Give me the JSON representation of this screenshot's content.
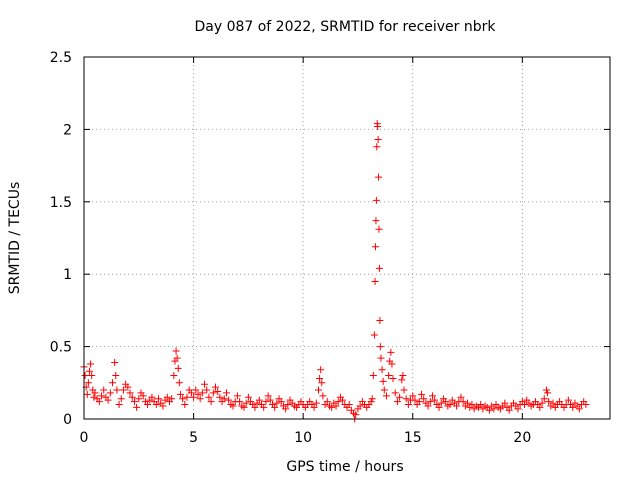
{
  "chart_data": {
    "type": "scatter",
    "title": "Day 087 of 2022, SRMTID for receiver nbrk",
    "xlabel": "GPS time / hours",
    "ylabel": "SRMTID / TECUs",
    "xlim": [
      0,
      24
    ],
    "ylim": [
      0,
      2.5
    ],
    "xticks": [
      0,
      5,
      10,
      15,
      20
    ],
    "xtick_labels": [
      "0",
      "5",
      "10",
      "15",
      "20"
    ],
    "yticks": [
      0,
      0.5,
      1,
      1.5,
      2,
      2.5
    ],
    "ytick_labels": [
      "0",
      "0.5",
      "1",
      "1.5",
      "2",
      "2.5"
    ],
    "grid": true,
    "marker": "+",
    "color": "#ff0000",
    "series": [
      {
        "name": "SRMTID",
        "points": [
          [
            0.0,
            0.36
          ],
          [
            0.05,
            0.3
          ],
          [
            0.1,
            0.22
          ],
          [
            0.15,
            0.17
          ],
          [
            0.2,
            0.25
          ],
          [
            0.25,
            0.33
          ],
          [
            0.3,
            0.38
          ],
          [
            0.35,
            0.3
          ],
          [
            0.4,
            0.2
          ],
          [
            0.45,
            0.15
          ],
          [
            0.5,
            0.18
          ],
          [
            0.6,
            0.14
          ],
          [
            0.7,
            0.12
          ],
          [
            0.8,
            0.16
          ],
          [
            0.9,
            0.2
          ],
          [
            1.0,
            0.15
          ],
          [
            1.1,
            0.13
          ],
          [
            1.2,
            0.18
          ],
          [
            1.3,
            0.25
          ],
          [
            1.4,
            0.39
          ],
          [
            1.45,
            0.3
          ],
          [
            1.5,
            0.2
          ],
          [
            1.6,
            0.1
          ],
          [
            1.7,
            0.14
          ],
          [
            1.8,
            0.2
          ],
          [
            1.9,
            0.24
          ],
          [
            2.0,
            0.22
          ],
          [
            2.1,
            0.18
          ],
          [
            2.2,
            0.15
          ],
          [
            2.3,
            0.12
          ],
          [
            2.4,
            0.08
          ],
          [
            2.5,
            0.14
          ],
          [
            2.6,
            0.18
          ],
          [
            2.7,
            0.16
          ],
          [
            2.8,
            0.12
          ],
          [
            2.9,
            0.1
          ],
          [
            3.0,
            0.13
          ],
          [
            3.1,
            0.15
          ],
          [
            3.2,
            0.12
          ],
          [
            3.3,
            0.1
          ],
          [
            3.4,
            0.14
          ],
          [
            3.5,
            0.11
          ],
          [
            3.6,
            0.09
          ],
          [
            3.7,
            0.13
          ],
          [
            3.8,
            0.15
          ],
          [
            3.9,
            0.12
          ],
          [
            4.0,
            0.14
          ],
          [
            4.1,
            0.3
          ],
          [
            4.15,
            0.4
          ],
          [
            4.2,
            0.47
          ],
          [
            4.25,
            0.42
          ],
          [
            4.3,
            0.35
          ],
          [
            4.35,
            0.25
          ],
          [
            4.4,
            0.17
          ],
          [
            4.5,
            0.14
          ],
          [
            4.6,
            0.1
          ],
          [
            4.7,
            0.15
          ],
          [
            4.8,
            0.2
          ],
          [
            4.9,
            0.18
          ],
          [
            5.0,
            0.15
          ],
          [
            5.1,
            0.2
          ],
          [
            5.2,
            0.17
          ],
          [
            5.3,
            0.14
          ],
          [
            5.4,
            0.18
          ],
          [
            5.5,
            0.24
          ],
          [
            5.6,
            0.2
          ],
          [
            5.7,
            0.15
          ],
          [
            5.8,
            0.12
          ],
          [
            5.9,
            0.18
          ],
          [
            6.0,
            0.22
          ],
          [
            6.1,
            0.19
          ],
          [
            6.2,
            0.15
          ],
          [
            6.3,
            0.12
          ],
          [
            6.4,
            0.14
          ],
          [
            6.5,
            0.18
          ],
          [
            6.6,
            0.13
          ],
          [
            6.7,
            0.1
          ],
          [
            6.8,
            0.09
          ],
          [
            6.9,
            0.12
          ],
          [
            7.0,
            0.16
          ],
          [
            7.1,
            0.12
          ],
          [
            7.2,
            0.09
          ],
          [
            7.3,
            0.08
          ],
          [
            7.4,
            0.11
          ],
          [
            7.5,
            0.15
          ],
          [
            7.6,
            0.12
          ],
          [
            7.7,
            0.1
          ],
          [
            7.8,
            0.08
          ],
          [
            7.9,
            0.11
          ],
          [
            8.0,
            0.13
          ],
          [
            8.1,
            0.1
          ],
          [
            8.2,
            0.08
          ],
          [
            8.3,
            0.12
          ],
          [
            8.4,
            0.16
          ],
          [
            8.5,
            0.13
          ],
          [
            8.6,
            0.1
          ],
          [
            8.7,
            0.08
          ],
          [
            8.8,
            0.11
          ],
          [
            8.9,
            0.14
          ],
          [
            9.0,
            0.12
          ],
          [
            9.1,
            0.09
          ],
          [
            9.2,
            0.07
          ],
          [
            9.3,
            0.1
          ],
          [
            9.4,
            0.13
          ],
          [
            9.5,
            0.11
          ],
          [
            9.6,
            0.09
          ],
          [
            9.7,
            0.08
          ],
          [
            9.8,
            0.1
          ],
          [
            9.9,
            0.12
          ],
          [
            10.0,
            0.1
          ],
          [
            10.1,
            0.08
          ],
          [
            10.2,
            0.1
          ],
          [
            10.3,
            0.12
          ],
          [
            10.4,
            0.1
          ],
          [
            10.5,
            0.08
          ],
          [
            10.6,
            0.11
          ],
          [
            10.7,
            0.2
          ],
          [
            10.75,
            0.28
          ],
          [
            10.8,
            0.34
          ],
          [
            10.85,
            0.25
          ],
          [
            10.9,
            0.16
          ],
          [
            11.0,
            0.1
          ],
          [
            11.1,
            0.12
          ],
          [
            11.2,
            0.09
          ],
          [
            11.3,
            0.08
          ],
          [
            11.4,
            0.11
          ],
          [
            11.5,
            0.09
          ],
          [
            11.6,
            0.12
          ],
          [
            11.7,
            0.15
          ],
          [
            11.8,
            0.13
          ],
          [
            11.9,
            0.1
          ],
          [
            12.0,
            0.08
          ],
          [
            12.1,
            0.1
          ],
          [
            12.2,
            0.06
          ],
          [
            12.3,
            0.04
          ],
          [
            12.35,
            0.0
          ],
          [
            12.4,
            0.03
          ],
          [
            12.5,
            0.07
          ],
          [
            12.6,
            0.09
          ],
          [
            12.7,
            0.12
          ],
          [
            12.8,
            0.1
          ],
          [
            12.9,
            0.08
          ],
          [
            13.0,
            0.1
          ],
          [
            13.1,
            0.12
          ],
          [
            13.15,
            0.14
          ],
          [
            13.2,
            0.3
          ],
          [
            13.25,
            0.58
          ],
          [
            13.28,
            0.95
          ],
          [
            13.3,
            1.19
          ],
          [
            13.32,
            1.37
          ],
          [
            13.34,
            1.51
          ],
          [
            13.36,
            1.88
          ],
          [
            13.38,
            2.04
          ],
          [
            13.4,
            2.02
          ],
          [
            13.42,
            1.93
          ],
          [
            13.44,
            1.67
          ],
          [
            13.46,
            1.31
          ],
          [
            13.48,
            1.04
          ],
          [
            13.5,
            0.68
          ],
          [
            13.52,
            0.5
          ],
          [
            13.55,
            0.42
          ],
          [
            13.6,
            0.34
          ],
          [
            13.65,
            0.26
          ],
          [
            13.7,
            0.2
          ],
          [
            13.8,
            0.16
          ],
          [
            13.9,
            0.3
          ],
          [
            13.95,
            0.4
          ],
          [
            14.0,
            0.46
          ],
          [
            14.05,
            0.38
          ],
          [
            14.1,
            0.28
          ],
          [
            14.2,
            0.18
          ],
          [
            14.3,
            0.12
          ],
          [
            14.4,
            0.15
          ],
          [
            14.5,
            0.27
          ],
          [
            14.55,
            0.3
          ],
          [
            14.6,
            0.2
          ],
          [
            14.7,
            0.14
          ],
          [
            14.8,
            0.1
          ],
          [
            14.9,
            0.13
          ],
          [
            15.0,
            0.16
          ],
          [
            15.1,
            0.13
          ],
          [
            15.2,
            0.1
          ],
          [
            15.3,
            0.12
          ],
          [
            15.4,
            0.17
          ],
          [
            15.5,
            0.14
          ],
          [
            15.6,
            0.11
          ],
          [
            15.7,
            0.09
          ],
          [
            15.8,
            0.12
          ],
          [
            15.9,
            0.16
          ],
          [
            16.0,
            0.13
          ],
          [
            16.1,
            0.1
          ],
          [
            16.2,
            0.08
          ],
          [
            16.3,
            0.11
          ],
          [
            16.4,
            0.14
          ],
          [
            16.5,
            0.12
          ],
          [
            16.6,
            0.09
          ],
          [
            16.7,
            0.1
          ],
          [
            16.8,
            0.13
          ],
          [
            16.9,
            0.11
          ],
          [
            17.0,
            0.09
          ],
          [
            17.1,
            0.12
          ],
          [
            17.2,
            0.15
          ],
          [
            17.3,
            0.12
          ],
          [
            17.4,
            0.09
          ],
          [
            17.5,
            0.11
          ],
          [
            17.6,
            0.08
          ],
          [
            17.7,
            0.1
          ],
          [
            17.8,
            0.07
          ],
          [
            17.9,
            0.09
          ],
          [
            18.0,
            0.08
          ],
          [
            18.1,
            0.1
          ],
          [
            18.2,
            0.07
          ],
          [
            18.3,
            0.09
          ],
          [
            18.4,
            0.08
          ],
          [
            18.5,
            0.06
          ],
          [
            18.6,
            0.09
          ],
          [
            18.7,
            0.07
          ],
          [
            18.8,
            0.1
          ],
          [
            18.9,
            0.08
          ],
          [
            19.0,
            0.07
          ],
          [
            19.1,
            0.09
          ],
          [
            19.2,
            0.11
          ],
          [
            19.3,
            0.08
          ],
          [
            19.4,
            0.06
          ],
          [
            19.5,
            0.09
          ],
          [
            19.6,
            0.11
          ],
          [
            19.7,
            0.09
          ],
          [
            19.8,
            0.07
          ],
          [
            19.9,
            0.1
          ],
          [
            20.0,
            0.12
          ],
          [
            20.1,
            0.1
          ],
          [
            20.2,
            0.13
          ],
          [
            20.3,
            0.11
          ],
          [
            20.4,
            0.09
          ],
          [
            20.5,
            0.1
          ],
          [
            20.6,
            0.12
          ],
          [
            20.7,
            0.1
          ],
          [
            20.8,
            0.08
          ],
          [
            20.9,
            0.11
          ],
          [
            21.0,
            0.14
          ],
          [
            21.1,
            0.2
          ],
          [
            21.15,
            0.18
          ],
          [
            21.2,
            0.12
          ],
          [
            21.3,
            0.09
          ],
          [
            21.4,
            0.11
          ],
          [
            21.5,
            0.08
          ],
          [
            21.6,
            0.1
          ],
          [
            21.7,
            0.12
          ],
          [
            21.8,
            0.1
          ],
          [
            21.9,
            0.08
          ],
          [
            22.0,
            0.1
          ],
          [
            22.1,
            0.13
          ],
          [
            22.2,
            0.1
          ],
          [
            22.3,
            0.08
          ],
          [
            22.4,
            0.11
          ],
          [
            22.5,
            0.09
          ],
          [
            22.6,
            0.07
          ],
          [
            22.7,
            0.1
          ],
          [
            22.8,
            0.12
          ],
          [
            22.9,
            0.1
          ]
        ]
      }
    ]
  }
}
